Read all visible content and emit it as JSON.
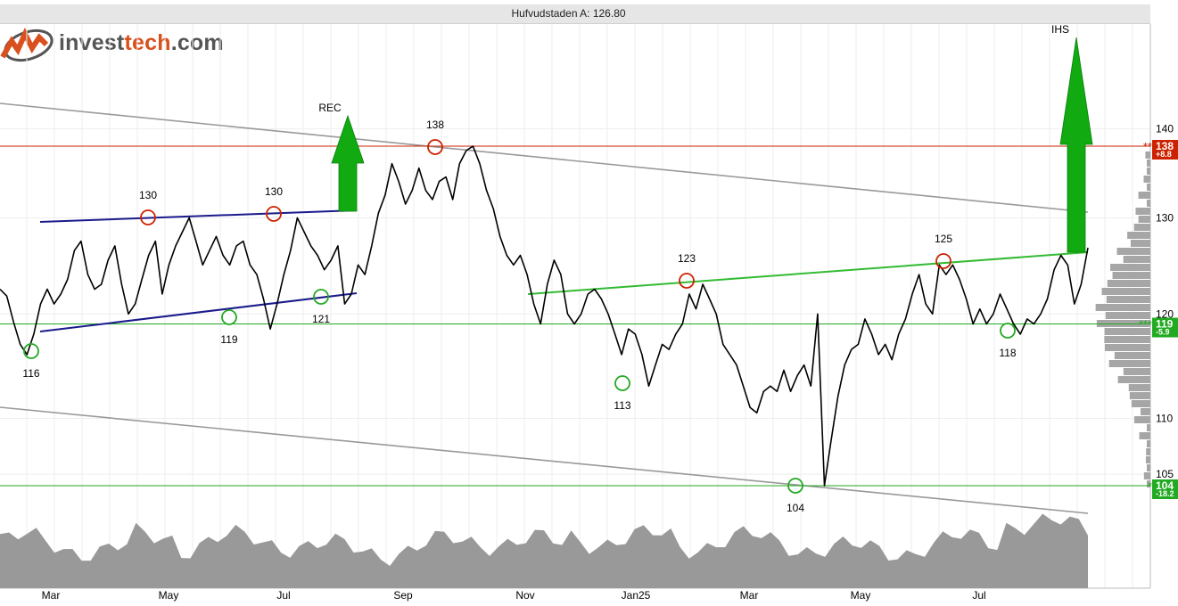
{
  "header": {
    "title": "Hufvudstaden A: 126.80"
  },
  "logo": {
    "part1": "invest",
    "part2": "tech",
    "part3": ".com"
  },
  "colors": {
    "price_line": "#000000",
    "resistance": "#cc2200",
    "support": "#22aa22",
    "channel": "#999999",
    "wedge": "#1a1a8c",
    "signal_arrow": "#11aa11",
    "volume": "#999999",
    "logo_accent": "#d9501e"
  },
  "chart_data": {
    "type": "line",
    "title": "Hufvudstaden A: 126.80",
    "x_tick_labels": [
      "Mar",
      "May",
      "Jul",
      "Sep",
      "Nov",
      "Jan25",
      "Mar",
      "May",
      "Jul"
    ],
    "y_tick_labels": [
      "105",
      "110",
      "120",
      "130",
      "140"
    ],
    "y_scale": "log",
    "ylim": [
      102,
      150
    ],
    "last_price": 126.8,
    "series": [
      {
        "values": [
          122.5,
          121.8,
          119.2,
          117.0,
          116.0,
          118.0,
          121.0,
          122.5,
          121.0,
          122.0,
          123.5,
          126.5,
          127.5,
          124.0,
          122.5,
          123.0,
          125.5,
          127.0,
          123.0,
          120.0,
          121.0,
          123.5,
          126.0,
          127.5,
          122.0,
          125.0,
          127.0,
          128.5,
          130.0,
          127.5,
          125.0,
          126.5,
          128.0,
          126.0,
          125.0,
          127.0,
          127.5,
          125.0,
          124.0,
          121.5,
          118.5,
          121.0,
          124.0,
          126.5,
          130.0,
          128.5,
          127.0,
          126.0,
          124.5,
          125.5,
          127.0,
          121.0,
          122.0,
          125.0,
          124.0,
          127.0,
          130.5,
          132.5,
          136.0,
          134.0,
          131.5,
          133.0,
          135.5,
          133.0,
          132.0,
          134.0,
          134.5,
          132.0,
          136.0,
          137.5,
          138.0,
          136.0,
          133.0,
          131.0,
          128.0,
          126.0,
          125.0,
          126.0,
          124.0,
          121.0,
          119.0,
          123.0,
          125.5,
          124.0,
          120.0,
          119.0,
          120.0,
          122.0,
          122.5,
          121.5,
          120.0,
          118.0,
          116.0,
          118.5,
          118.0,
          116.0,
          113.0,
          115.0,
          117.0,
          116.5,
          118.0,
          119.0,
          122.0,
          120.5,
          123.0,
          121.5,
          120.0,
          117.0,
          116.0,
          115.0,
          113.0,
          111.0,
          110.5,
          112.5,
          113.0,
          112.5,
          114.5,
          112.5,
          114.0,
          115.0,
          113.0,
          120.0,
          104.0,
          108.0,
          112.0,
          115.0,
          116.5,
          117.0,
          119.5,
          118.0,
          116.0,
          117.0,
          115.5,
          118.0,
          119.5,
          122.0,
          124.0,
          121.0,
          120.0,
          125.0,
          124.0,
          125.0,
          123.5,
          121.5,
          119.0,
          120.5,
          119.0,
          120.0,
          122.0,
          120.5,
          119.0,
          118.0,
          119.5,
          119.0,
          120.0,
          121.5,
          124.5,
          126.0,
          125.0,
          121.0,
          123.0,
          126.8
        ]
      }
    ],
    "annotations": {
      "peaks": [
        "130",
        "130",
        "138",
        "123",
        "125"
      ],
      "troughs": [
        "116",
        "119",
        "121",
        "113",
        "104",
        "118"
      ],
      "signals": [
        "REC",
        "IHS"
      ],
      "price_levels": [
        {
          "value": "138",
          "marker": "**",
          "change": "+8.8",
          "color": "resistance"
        },
        {
          "value": "119",
          "marker": "***",
          "change": "-5.9",
          "color": "support"
        },
        {
          "value": "104",
          "marker": "*",
          "change": "-18.2",
          "color": "support"
        }
      ]
    }
  }
}
